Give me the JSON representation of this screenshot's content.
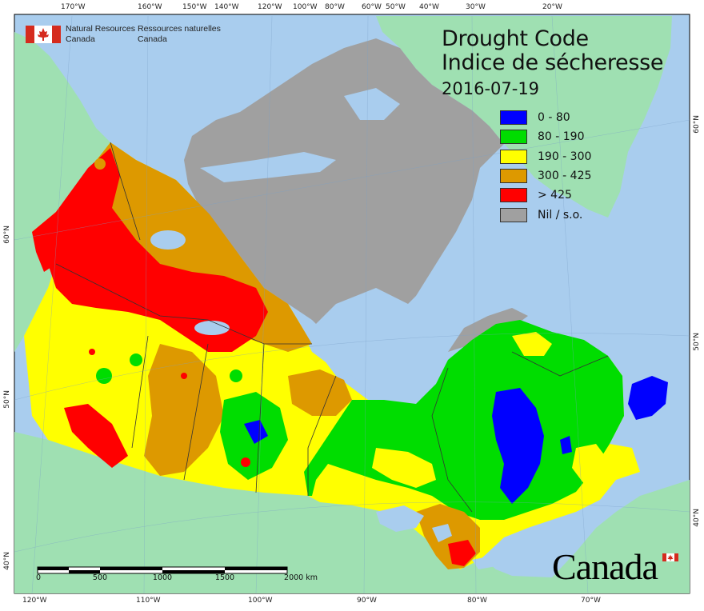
{
  "title": {
    "en": "Drought Code",
    "fr": "Indice de sécheresse",
    "date": "2016-07-19"
  },
  "legend": [
    {
      "label": "0 - 80",
      "color": "#0000ff"
    },
    {
      "label": "80 - 190",
      "color": "#00dd00"
    },
    {
      "label": "190 - 300",
      "color": "#ffff00"
    },
    {
      "label": "300 - 425",
      "color": "#dd9900"
    },
    {
      "label": "> 425",
      "color": "#ff0000"
    },
    {
      "label": "Nil / s.o.",
      "color": "#a0a0a0"
    }
  ],
  "nrcan": {
    "en_line1": "Natural Resources",
    "en_line2": "Canada",
    "fr_line1": "Ressources naturelles",
    "fr_line2": "Canada"
  },
  "wordmark": "Canada",
  "scalebar": {
    "labels": [
      "0",
      "500",
      "1000",
      "1500",
      "2000 km"
    ]
  },
  "graticule": {
    "top_labels": [
      "170°W",
      "160°W",
      "150°W",
      "140°W",
      "120°W",
      "100°W",
      "80°W",
      "60°W",
      "50°W",
      "40°W",
      "30°W",
      "20°W"
    ],
    "bottom_labels": [
      "120°W",
      "110°W",
      "100°W",
      "90°W",
      "80°W",
      "70°W"
    ],
    "left_labels": [
      "60°N",
      "50°N",
      "40°N"
    ],
    "right_labels": [
      "60°N",
      "50°N",
      "40°N"
    ]
  },
  "colors": {
    "ocean": "#a9cdee",
    "land_outside": "#9fe0b2",
    "nodata": "#a0a0a0",
    "flag_red": "#d52b1e"
  }
}
